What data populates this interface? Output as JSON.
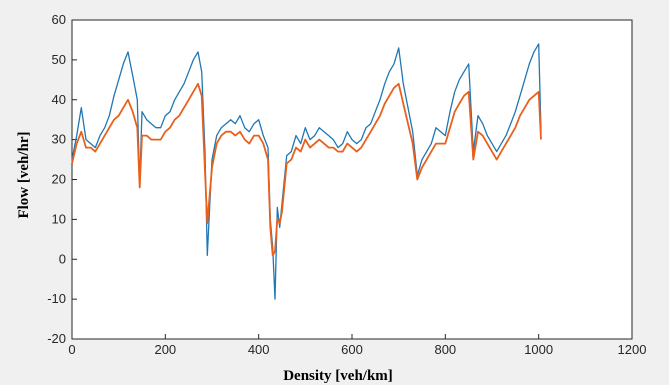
{
  "chart_data": {
    "type": "line",
    "title": "",
    "xlabel": "Density [veh/km]",
    "ylabel": "Flow [veh/hr]",
    "xlim": [
      0,
      1200
    ],
    "ylim": [
      -20,
      60
    ],
    "xticks": [
      0,
      200,
      400,
      600,
      800,
      1000,
      1200
    ],
    "yticks": [
      -20,
      -10,
      0,
      10,
      20,
      30,
      40,
      50,
      60
    ],
    "grid": false,
    "legend": "none",
    "colors": {
      "series_a": "#1f77b4",
      "series_b": "#e8601c",
      "axes_bg": "#ffffff",
      "figure_bg": "#f0f0f0",
      "axis": "#262626"
    },
    "series": [
      {
        "x": [
          0,
          10,
          20,
          30,
          40,
          50,
          60,
          70,
          80,
          90,
          100,
          110,
          120,
          130,
          140,
          145,
          150,
          160,
          170,
          180,
          190,
          200,
          210,
          220,
          230,
          240,
          250,
          260,
          270,
          278,
          285,
          290,
          300,
          310,
          320,
          330,
          340,
          350,
          360,
          370,
          380,
          390,
          400,
          410,
          420,
          425,
          430,
          435,
          440,
          445,
          450,
          460,
          470,
          480,
          490,
          500,
          510,
          520,
          530,
          540,
          550,
          560,
          570,
          580,
          590,
          600,
          610,
          620,
          630,
          640,
          650,
          660,
          670,
          680,
          690,
          700,
          710,
          720,
          730,
          740,
          750,
          760,
          770,
          780,
          790,
          800,
          810,
          820,
          830,
          840,
          850,
          860,
          870,
          880,
          890,
          900,
          910,
          920,
          930,
          940,
          950,
          960,
          970,
          980,
          990,
          1000,
          1005
        ],
        "values": [
          25,
          31,
          38,
          30,
          29,
          28,
          31,
          33,
          36,
          41,
          45,
          49,
          52,
          46,
          40,
          19,
          37,
          35,
          34,
          33,
          33,
          36,
          37,
          40,
          42,
          44,
          47,
          50,
          52,
          47,
          27,
          1,
          25,
          31,
          33,
          34,
          35,
          34,
          36,
          33,
          32,
          34,
          35,
          31,
          28,
          10,
          3,
          -10,
          13,
          8,
          14,
          26,
          27,
          31,
          29,
          33,
          30,
          31,
          33,
          32,
          31,
          30,
          28,
          29,
          32,
          30,
          29,
          30,
          33,
          34,
          37,
          40,
          44,
          47,
          49,
          53,
          44,
          38,
          32,
          21,
          25,
          27,
          29,
          33,
          32,
          31,
          37,
          42,
          45,
          47,
          49,
          27,
          36,
          34,
          31,
          29,
          27,
          29,
          31,
          34,
          37,
          41,
          45,
          49,
          52,
          54,
          32
        ]
      },
      {
        "x": [
          0,
          10,
          20,
          30,
          40,
          50,
          60,
          70,
          80,
          90,
          100,
          110,
          120,
          130,
          140,
          145,
          150,
          160,
          170,
          180,
          190,
          200,
          210,
          220,
          230,
          240,
          250,
          260,
          270,
          278,
          285,
          290,
          300,
          310,
          320,
          330,
          340,
          350,
          360,
          370,
          380,
          390,
          400,
          410,
          420,
          425,
          430,
          435,
          440,
          445,
          450,
          460,
          470,
          480,
          490,
          500,
          510,
          520,
          530,
          540,
          550,
          560,
          570,
          580,
          590,
          600,
          610,
          620,
          630,
          640,
          650,
          660,
          670,
          680,
          690,
          700,
          710,
          720,
          730,
          740,
          750,
          760,
          770,
          780,
          790,
          800,
          810,
          820,
          830,
          840,
          850,
          860,
          870,
          880,
          890,
          900,
          910,
          920,
          930,
          940,
          950,
          960,
          970,
          980,
          990,
          1000,
          1005
        ],
        "values": [
          24,
          29,
          32,
          28,
          28,
          27,
          29,
          31,
          33,
          35,
          36,
          38,
          40,
          37,
          33,
          18,
          31,
          31,
          30,
          30,
          30,
          32,
          33,
          35,
          36,
          38,
          40,
          42,
          44,
          41,
          22,
          9,
          23,
          29,
          31,
          32,
          32,
          31,
          32,
          30,
          29,
          31,
          31,
          29,
          25,
          8,
          1,
          2,
          10,
          9,
          12,
          24,
          25,
          28,
          27,
          30,
          28,
          29,
          30,
          29,
          28,
          28,
          27,
          27,
          29,
          28,
          27,
          28,
          30,
          32,
          34,
          36,
          39,
          41,
          43,
          44,
          39,
          34,
          29,
          20,
          23,
          25,
          27,
          29,
          29,
          29,
          33,
          37,
          39,
          41,
          42,
          25,
          32,
          31,
          29,
          27,
          25,
          27,
          29,
          31,
          33,
          36,
          38,
          40,
          41,
          42,
          30
        ]
      }
    ]
  }
}
